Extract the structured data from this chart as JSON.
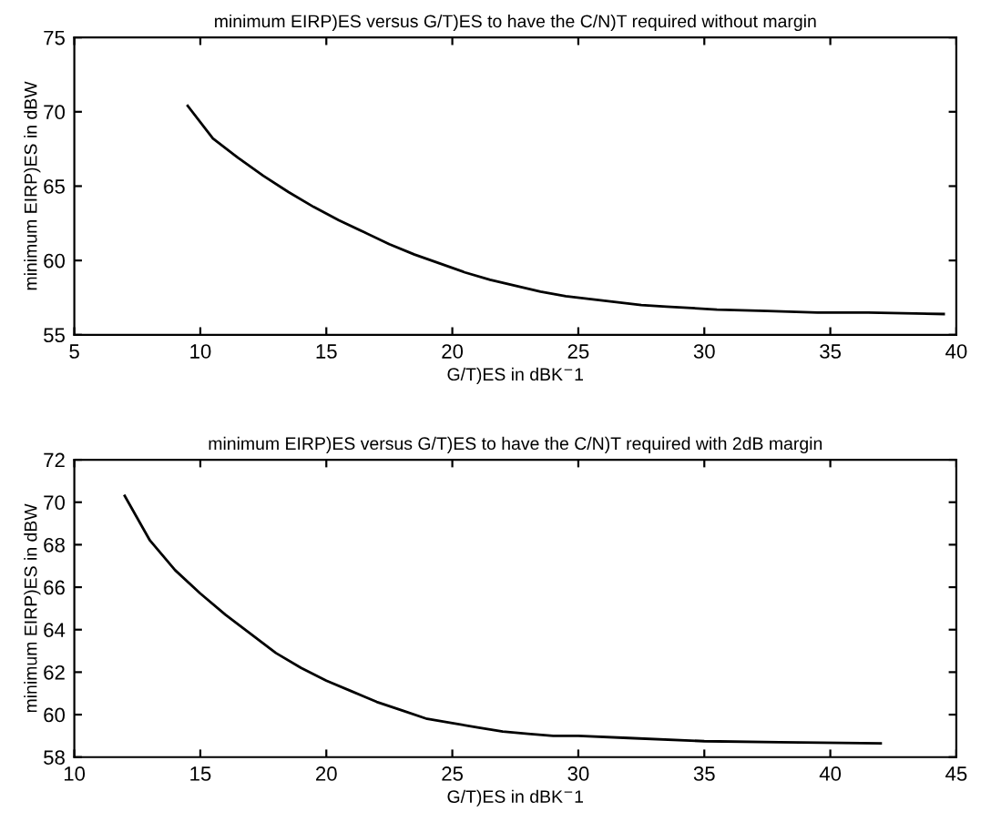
{
  "chart_data": [
    {
      "type": "line",
      "title": "minimum EIRP)ES versus G/T)ES to have the C/N)T required without margin",
      "xlabel": "G/T)ES in dBK$^{−}$1",
      "ylabel": "minimum EIRP)ES in dBW",
      "xlim": [
        5,
        40
      ],
      "ylim": [
        55,
        75
      ],
      "xticks": [
        5,
        10,
        15,
        20,
        25,
        30,
        35,
        40
      ],
      "yticks": [
        55,
        60,
        65,
        70,
        75
      ],
      "series": [
        {
          "color": "#000000",
          "x": [
            9.5,
            10.5,
            11.5,
            12.5,
            13.5,
            14.5,
            15.5,
            16.5,
            17.5,
            18.5,
            19.5,
            20.5,
            21.5,
            22.5,
            23.5,
            24.5,
            25.5,
            26.5,
            27.5,
            28.5,
            29.5,
            30.5,
            32.5,
            34.5,
            36.5,
            39.5
          ],
          "values": [
            70.4,
            68.2,
            66.9,
            65.7,
            64.6,
            63.6,
            62.7,
            61.9,
            61.1,
            60.4,
            59.8,
            59.2,
            58.7,
            58.3,
            57.9,
            57.6,
            57.4,
            57.2,
            57.0,
            56.9,
            56.8,
            56.7,
            56.6,
            56.5,
            56.5,
            56.4
          ]
        }
      ]
    },
    {
      "type": "line",
      "title": "minimum EIRP)ES versus G/T)ES to have the C/N)T required with 2dB margin",
      "xlabel": "G/T)ES in dBK$^{−}$1",
      "ylabel": "minimum EIRP)ES in dBW",
      "xlim": [
        10,
        45
      ],
      "ylim": [
        58,
        72
      ],
      "xticks": [
        10,
        15,
        20,
        25,
        30,
        35,
        40,
        45
      ],
      "yticks": [
        58,
        60,
        62,
        64,
        66,
        68,
        70,
        72
      ],
      "series": [
        {
          "color": "#000000",
          "x": [
            12,
            13,
            14,
            15,
            16,
            17,
            18,
            19,
            20,
            21,
            22,
            23,
            24,
            25,
            26,
            27,
            28,
            29,
            30,
            32,
            35,
            38,
            42
          ],
          "values": [
            70.3,
            68.2,
            66.8,
            65.7,
            64.7,
            63.8,
            62.9,
            62.2,
            61.6,
            61.1,
            60.6,
            60.2,
            59.8,
            59.6,
            59.4,
            59.2,
            59.1,
            59.0,
            59.0,
            58.9,
            58.75,
            58.7,
            58.65
          ]
        }
      ]
    }
  ]
}
